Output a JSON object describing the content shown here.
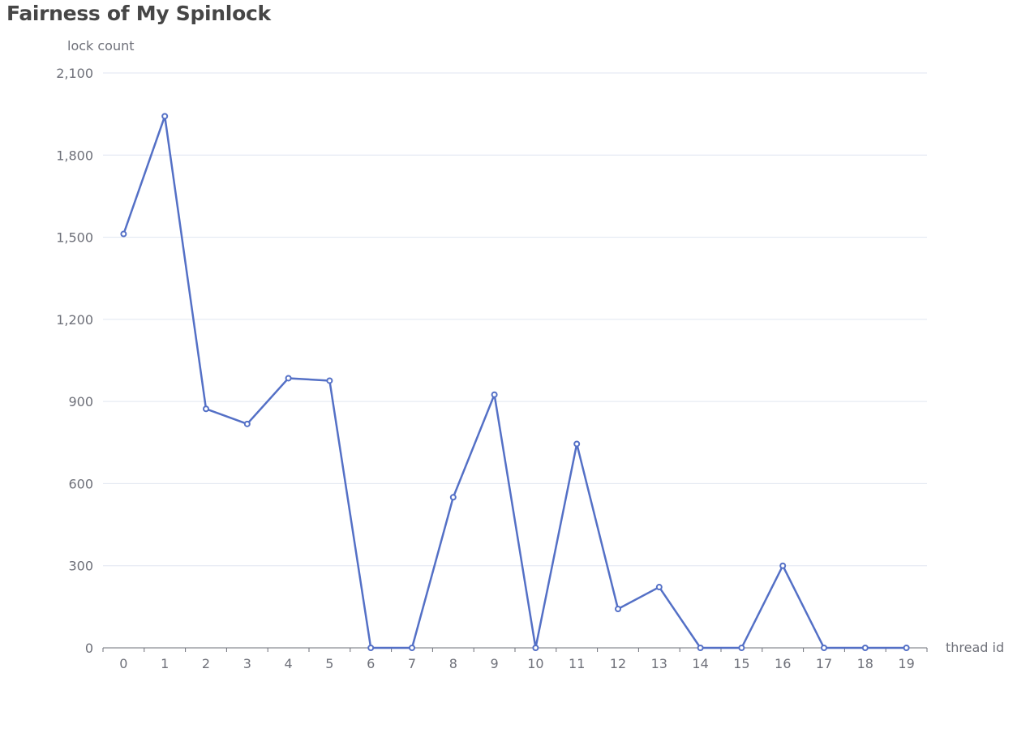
{
  "chart_data": {
    "type": "line",
    "title": "Fairness of My Spinlock",
    "xlabel": "thread id",
    "ylabel": "lock count",
    "categories": [
      "0",
      "1",
      "2",
      "3",
      "4",
      "5",
      "6",
      "7",
      "8",
      "9",
      "10",
      "11",
      "12",
      "13",
      "14",
      "15",
      "16",
      "17",
      "18",
      "19"
    ],
    "series": [
      {
        "values": [
          1512,
          1942,
          873,
          818,
          985,
          976,
          0,
          0,
          550,
          925,
          0,
          745,
          142,
          222,
          0,
          0,
          300,
          0,
          0,
          0
        ]
      }
    ],
    "ylim": [
      0,
      2100
    ],
    "yticks": [
      0,
      300,
      600,
      900,
      1200,
      1500,
      1800,
      2100
    ],
    "ytick_labels": [
      "0",
      "300",
      "600",
      "900",
      "1,200",
      "1,500",
      "1,800",
      "2,100"
    ],
    "grid": true,
    "colors": {
      "line": "#5470c6",
      "grid": "#e0e6f1",
      "axis": "#6e7079",
      "text": "#6e7079",
      "title": "#464646"
    }
  }
}
